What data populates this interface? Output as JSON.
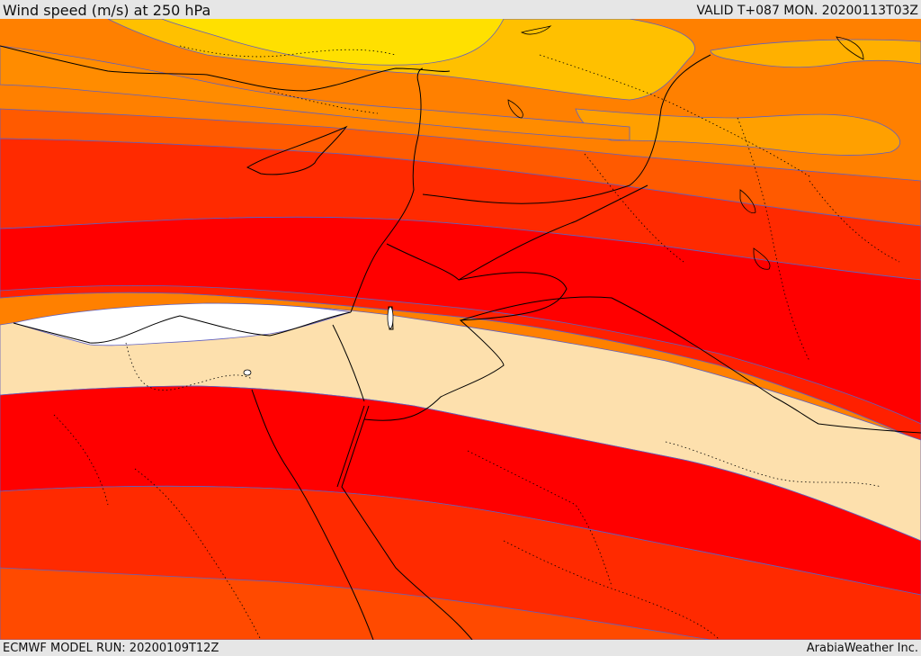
{
  "header": {
    "title": "Wind speed (m/s) at 250 hPa",
    "valid": "VALID T+087 MON. 20200113T03Z"
  },
  "footer": {
    "model_run": "ECMWF MODEL RUN: 20200109T12Z",
    "credit": "ArabiaWeather Inc."
  },
  "colors": {
    "yellow": "#ffe000",
    "gold": "#ffc000",
    "orange_light": "#ff9a00",
    "orange": "#ff8000",
    "orange_dark": "#ff5a00",
    "red_orange": "#ff2a00",
    "red": "#ff0000",
    "tan": "#fde0ad",
    "white": "#ffffff",
    "contour": "#6060c0"
  }
}
